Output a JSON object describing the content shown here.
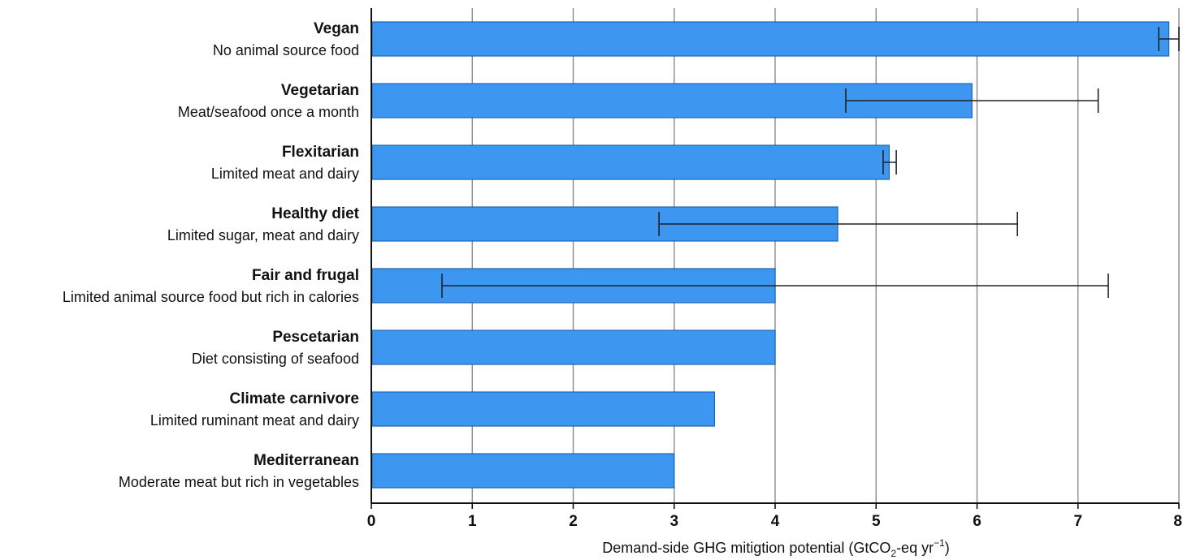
{
  "chart_data": {
    "type": "bar",
    "orientation": "horizontal",
    "categories": [
      {
        "name": "Vegan",
        "description": "No animal source food"
      },
      {
        "name": "Vegetarian",
        "description": "Meat/seafood once a month"
      },
      {
        "name": "Flexitarian",
        "description": "Limited meat and dairy"
      },
      {
        "name": "Healthy diet",
        "description": "Limited sugar, meat and dairy"
      },
      {
        "name": "Fair and frugal",
        "description": "Limited animal source food but rich in calories"
      },
      {
        "name": "Pescetarian",
        "description": "Diet consisting of seafood"
      },
      {
        "name": "Climate carnivore",
        "description": "Limited ruminant meat and dairy"
      },
      {
        "name": "Mediterranean",
        "description": "Moderate meat but rich in vegetables"
      }
    ],
    "values": [
      7.9,
      5.95,
      5.13,
      4.62,
      4.0,
      4.0,
      3.4,
      3.0
    ],
    "error_ranges": [
      [
        7.8,
        8.0
      ],
      [
        4.7,
        7.2
      ],
      [
        5.07,
        5.2
      ],
      [
        2.85,
        6.4
      ],
      [
        0.7,
        7.3
      ],
      null,
      null,
      null
    ],
    "xlabel": {
      "prefix": "Demand-side GHG mitigtion potential (GtCO",
      "sub": "2",
      "middle": "-eq yr",
      "sup": "−1",
      "suffix": ")"
    },
    "xlim": [
      0,
      8
    ],
    "xticks": [
      "0",
      "1",
      "2",
      "3",
      "4",
      "5",
      "6",
      "7",
      "8"
    ],
    "grid": "vertical",
    "colors": {
      "bar_fill": "#3d97f0",
      "bar_stroke": "#1c66b8",
      "grid": "#8a8a8a",
      "axis": "#111111",
      "error_bar": "#222222"
    }
  }
}
